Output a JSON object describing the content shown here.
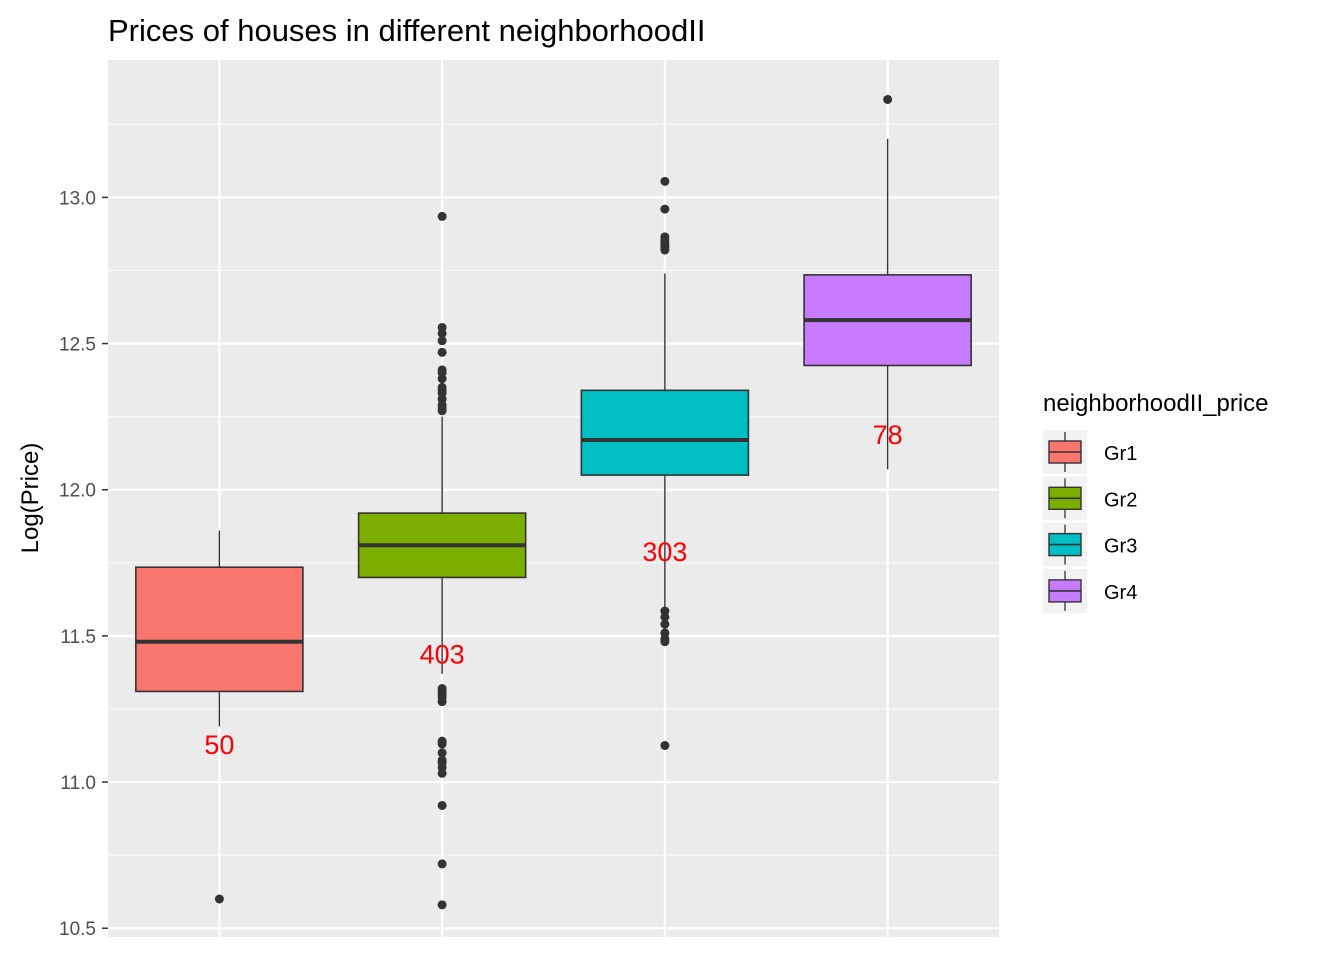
{
  "chart_data": {
    "type": "box",
    "title": "Prices of houses in different neighborhoodII",
    "xlabel": "",
    "ylabel": "Log(Price)",
    "ylim": [
      10.47,
      13.47
    ],
    "y_ticks": [
      10.5,
      11.0,
      11.5,
      12.0,
      12.5,
      13.0
    ],
    "y_tick_labels": [
      "10.5",
      "11.0",
      "11.5",
      "12.0",
      "12.5",
      "13.0"
    ],
    "x_tick_labels_shown": false,
    "grid": true,
    "legend": {
      "title": "neighborhoodII_price",
      "position": "right",
      "entries": [
        "Gr1",
        "Gr2",
        "Gr3",
        "Gr4"
      ]
    },
    "groups": [
      {
        "name": "Gr1",
        "color": "#F8766D",
        "count_label": "50",
        "lower_whisker": 11.19,
        "q1": 11.31,
        "median": 11.48,
        "q3": 11.735,
        "upper_whisker": 11.86,
        "outliers": [
          10.6
        ],
        "count_label_y": 11.13
      },
      {
        "name": "Gr2",
        "color": "#7CAE00",
        "count_label": "403",
        "lower_whisker": 11.37,
        "q1": 11.7,
        "median": 11.81,
        "q3": 11.92,
        "upper_whisker": 12.25,
        "outliers": [
          12.935,
          12.555,
          12.535,
          12.51,
          12.47,
          12.41,
          12.4,
          12.38,
          12.35,
          12.34,
          12.33,
          12.31,
          12.29,
          12.28,
          12.27,
          11.32,
          11.31,
          11.3,
          11.29,
          11.275,
          11.14,
          11.13,
          11.1,
          11.075,
          11.065,
          11.05,
          11.03,
          10.92,
          10.72,
          10.58
        ],
        "count_label_y": 11.44
      },
      {
        "name": "Gr3",
        "color": "#00BFC4",
        "count_label": "303",
        "lower_whisker": 11.6,
        "q1": 12.05,
        "median": 12.17,
        "q3": 12.34,
        "upper_whisker": 12.74,
        "outliers": [
          13.055,
          12.96,
          12.865,
          12.855,
          12.845,
          12.835,
          12.83,
          12.82,
          11.585,
          11.565,
          11.54,
          11.51,
          11.49,
          11.48,
          11.125
        ],
        "count_label_y": 11.79
      },
      {
        "name": "Gr4",
        "color": "#C77CFF",
        "count_label": "78",
        "lower_whisker": 12.07,
        "q1": 12.425,
        "median": 12.58,
        "q3": 12.735,
        "upper_whisker": 13.2,
        "outliers": [
          13.335
        ],
        "count_label_y": 12.19
      }
    ],
    "colors": {
      "panel_background": "#EBEBEB",
      "grid_major": "#FFFFFF",
      "box_outline": "#333333",
      "outlier": "#333333",
      "count_label": "#FF0000"
    }
  }
}
